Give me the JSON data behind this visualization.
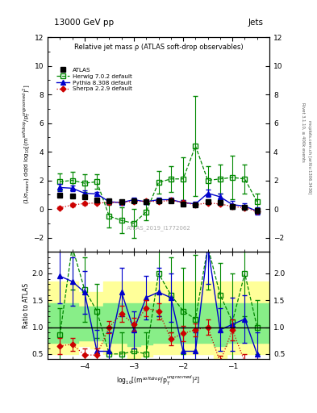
{
  "title_top": "13000 GeV pp",
  "title_right": "Jets",
  "plot_title": "Relative jet mass ρ (ATLAS soft-drop observables)",
  "watermark": "ATLAS_2019_I1772062",
  "right_label_top": "Rivet 3.1.10, ≥ 400k events",
  "right_label_bot": "mcplots.cern.ch [arXiv:1306.3436]",
  "ylabel_main": "(1/σ$_{resum}$) dσ/d log$_{10}$[(m$^{soft drop}$/p$_T^{ungroomed}$)$^2$]",
  "ylabel_ratio": "Ratio to ATLAS",
  "xlabel": "log$_{10}$[(m$^{soft drop}$/p$_T^{ungroomed}$)$^2$]",
  "xlim": [
    -4.75,
    -0.25
  ],
  "ylim_main": [
    -3,
    12
  ],
  "ylim_ratio": [
    0.4,
    2.4
  ],
  "x_data": [
    -4.5,
    -4.25,
    -4.0,
    -3.75,
    -3.5,
    -3.25,
    -3.0,
    -2.75,
    -2.5,
    -2.25,
    -2.0,
    -1.75,
    -1.5,
    -1.25,
    -1.0,
    -0.75,
    -0.5
  ],
  "atlas_y": [
    0.95,
    0.9,
    0.85,
    0.6,
    0.55,
    0.5,
    0.55,
    0.5,
    0.55,
    0.55,
    0.35,
    0.3,
    0.5,
    0.45,
    0.15,
    0.12,
    -0.1
  ],
  "atlas_yerr": [
    0.12,
    0.12,
    0.1,
    0.1,
    0.08,
    0.08,
    0.08,
    0.08,
    0.08,
    0.08,
    0.1,
    0.08,
    0.12,
    0.1,
    0.12,
    0.1,
    0.15
  ],
  "herwig_y": [
    1.9,
    2.0,
    1.8,
    1.9,
    -0.5,
    -0.8,
    -1.0,
    -0.2,
    1.85,
    2.1,
    2.1,
    4.4,
    2.0,
    2.1,
    2.2,
    2.1,
    0.5
  ],
  "herwig_yerr": [
    0.6,
    0.6,
    0.6,
    0.5,
    0.8,
    0.9,
    1.0,
    0.6,
    0.8,
    0.9,
    1.5,
    3.5,
    1.0,
    1.0,
    1.5,
    1.0,
    0.6
  ],
  "pythia_y": [
    1.5,
    1.45,
    1.1,
    1.05,
    0.5,
    0.45,
    0.65,
    0.5,
    0.65,
    0.65,
    0.45,
    0.35,
    1.1,
    0.85,
    0.3,
    0.2,
    -0.15
  ],
  "pythia_yerr": [
    0.25,
    0.2,
    0.18,
    0.15,
    0.15,
    0.15,
    0.15,
    0.15,
    0.15,
    0.15,
    0.2,
    0.15,
    0.25,
    0.2,
    0.25,
    0.2,
    0.25
  ],
  "sherpa_y": [
    0.08,
    0.28,
    0.38,
    0.42,
    0.45,
    0.48,
    0.52,
    0.55,
    0.52,
    0.6,
    0.45,
    0.3,
    0.42,
    0.35,
    0.18,
    0.08,
    -0.18
  ],
  "sherpa_yerr": [
    0.1,
    0.1,
    0.08,
    0.08,
    0.08,
    0.08,
    0.08,
    0.08,
    0.08,
    0.08,
    0.1,
    0.08,
    0.1,
    0.08,
    0.1,
    0.1,
    0.12
  ],
  "ratio_herwig_y": [
    0.85,
    2.5,
    1.7,
    1.3,
    0.5,
    0.5,
    0.55,
    0.5,
    2.0,
    1.6,
    1.3,
    1.15,
    2.5,
    1.6,
    1.1,
    2.0,
    1.0
  ],
  "ratio_herwig_err": [
    0.5,
    0.8,
    0.6,
    0.5,
    0.4,
    0.4,
    0.5,
    0.4,
    0.8,
    0.7,
    0.8,
    1.2,
    0.8,
    0.6,
    0.9,
    0.8,
    0.5
  ],
  "ratio_pythia_y": [
    1.95,
    1.85,
    1.65,
    0.55,
    0.55,
    1.65,
    0.95,
    1.55,
    1.65,
    1.55,
    0.55,
    0.55,
    2.5,
    0.95,
    1.05,
    1.15,
    0.5
  ],
  "ratio_pythia_err": [
    0.5,
    0.45,
    0.4,
    0.4,
    0.35,
    0.45,
    0.35,
    0.4,
    0.45,
    0.45,
    0.45,
    0.35,
    0.7,
    0.4,
    0.5,
    0.45,
    0.4
  ],
  "ratio_sherpa_y": [
    0.65,
    0.68,
    0.48,
    0.48,
    1.0,
    1.25,
    1.05,
    1.35,
    1.3,
    0.78,
    0.88,
    0.95,
    1.0,
    0.35,
    0.95,
    0.35,
    0.2
  ],
  "ratio_sherpa_err": [
    0.15,
    0.12,
    0.12,
    0.12,
    0.12,
    0.15,
    0.12,
    0.15,
    0.15,
    0.12,
    0.15,
    0.12,
    0.15,
    0.12,
    0.2,
    0.15,
    0.2
  ],
  "atlas_color": "#000000",
  "herwig_color": "#008800",
  "pythia_color": "#0000cc",
  "sherpa_color": "#cc0000",
  "band_yellow": "#ffff99",
  "band_green": "#88ee88",
  "band_x": [
    -4.75,
    -4.375,
    -4.125,
    -3.875,
    -3.625,
    -3.375,
    -3.125,
    -2.875,
    -2.625,
    -2.375,
    -2.125,
    -1.875,
    -1.625,
    -1.375,
    -1.125,
    -0.875,
    -0.625,
    -0.375,
    -0.25
  ],
  "band_yellow_lo": [
    0.5,
    0.5,
    0.65,
    0.6,
    0.5,
    0.5,
    0.4,
    0.45,
    0.5,
    0.5,
    0.5,
    0.5,
    0.5,
    0.4,
    0.5,
    0.5,
    0.5,
    0.5
  ],
  "band_yellow_hi": [
    1.85,
    1.85,
    1.65,
    1.65,
    1.85,
    1.85,
    1.85,
    1.85,
    1.85,
    1.85,
    1.85,
    1.85,
    1.85,
    1.85,
    1.85,
    1.85,
    1.85,
    1.85
  ],
  "band_green_lo": [
    0.7,
    0.7,
    0.75,
    0.75,
    0.7,
    0.7,
    0.65,
    0.68,
    0.7,
    0.7,
    0.7,
    0.7,
    0.7,
    0.65,
    0.7,
    0.7,
    0.7,
    0.7
  ],
  "band_green_hi": [
    1.45,
    1.45,
    1.38,
    1.38,
    1.45,
    1.45,
    1.45,
    1.45,
    1.45,
    1.45,
    1.45,
    1.45,
    1.45,
    1.45,
    1.45,
    1.45,
    1.45,
    1.45
  ],
  "xticks": [
    -4,
    -3,
    -2,
    -1
  ],
  "yticks_main": [
    -2,
    0,
    2,
    4,
    6,
    8,
    10,
    12
  ],
  "yticks_ratio": [
    0.5,
    1.0,
    1.5,
    2.0
  ]
}
